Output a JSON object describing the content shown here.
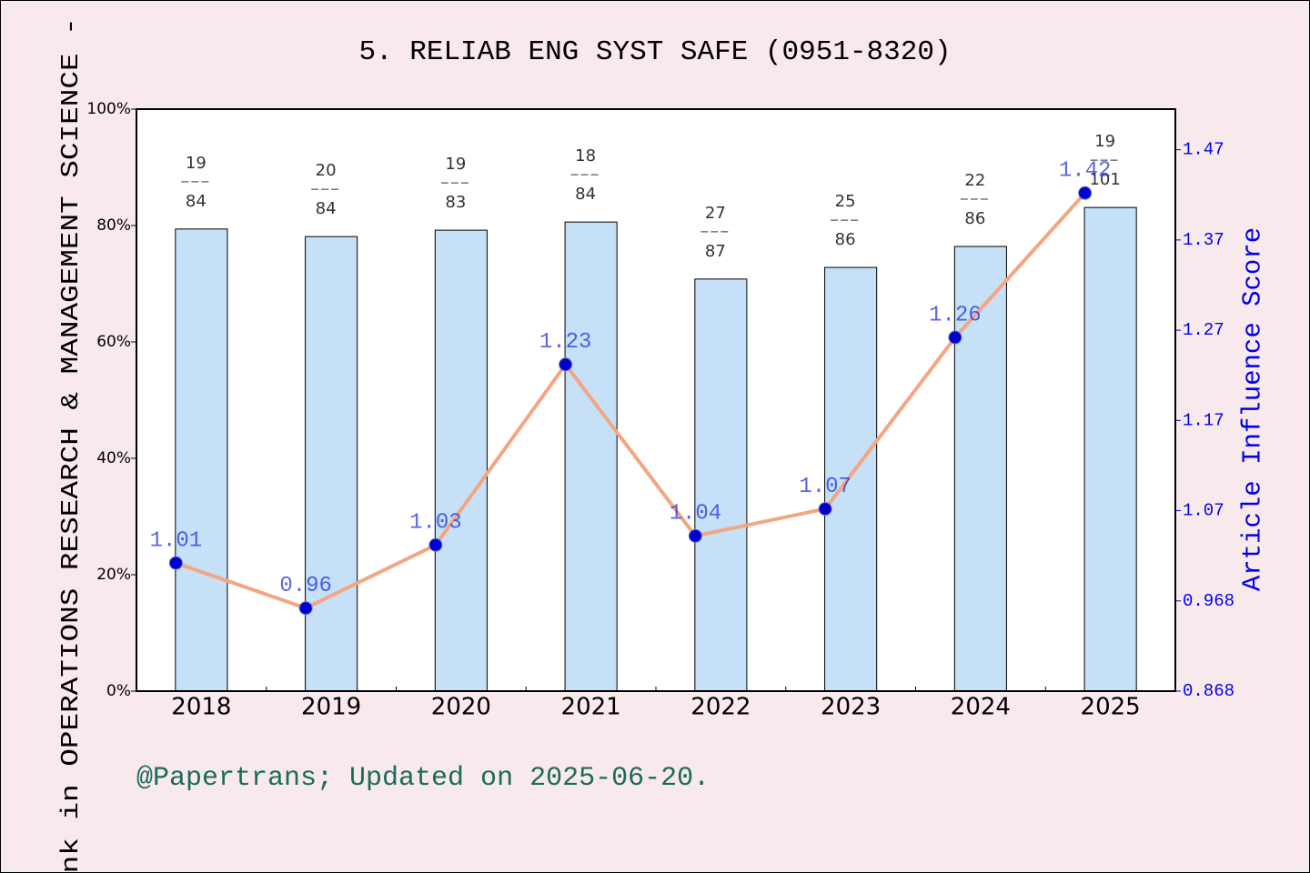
{
  "chart_data": {
    "type": "bar_line",
    "title": "5. RELIAB ENG SYST SAFE (0951-8320)",
    "y_label": "ank in OPERATIONS RESEARCH & MANAGEMENT SCIENCE - S",
    "y2_label": "Article Influence Score",
    "footer": "@Papertrans; Updated on 2025-06-20.",
    "categories": [
      "2018",
      "2019",
      "2020",
      "2021",
      "2022",
      "2023",
      "2024",
      "2025"
    ],
    "series": [
      {
        "name": "Rank percentile",
        "type": "bar",
        "color": "#c5e0f7",
        "values": [
          79.4,
          78.1,
          79.2,
          80.6,
          70.8,
          72.8,
          76.4,
          83.1
        ],
        "rank_labels": [
          [
            "19",
            "84"
          ],
          [
            "20",
            "84"
          ],
          [
            "19",
            "83"
          ],
          [
            "18",
            "84"
          ],
          [
            "27",
            "87"
          ],
          [
            "25",
            "86"
          ],
          [
            "22",
            "86"
          ],
          [
            "19",
            "101"
          ]
        ]
      },
      {
        "name": "Article Influence Score",
        "type": "line",
        "axis": "y2",
        "color": "#f4a582",
        "marker_color": "#0000cc",
        "values": [
          1.01,
          0.96,
          1.03,
          1.23,
          1.04,
          1.07,
          1.26,
          1.42
        ]
      }
    ],
    "ylim": [
      0,
      100
    ],
    "yticks": [
      {
        "value": 0,
        "label": "0%"
      },
      {
        "value": 20,
        "label": "20%"
      },
      {
        "value": 40,
        "label": "40%"
      },
      {
        "value": 60,
        "label": "60%"
      },
      {
        "value": 80,
        "label": "80%"
      },
      {
        "value": 100,
        "label": "100%"
      }
    ],
    "y2lim": [
      0.868,
      1.513
    ],
    "y2ticks": [
      0.868,
      0.968,
      {
        "value": 1.068,
        "label": "1.07"
      },
      {
        "value": 1.168,
        "label": "1.17"
      },
      {
        "value": 1.268,
        "label": "1.27"
      },
      {
        "value": 1.368,
        "label": "1.37"
      },
      {
        "value": 1.468,
        "label": "1.47"
      }
    ]
  }
}
